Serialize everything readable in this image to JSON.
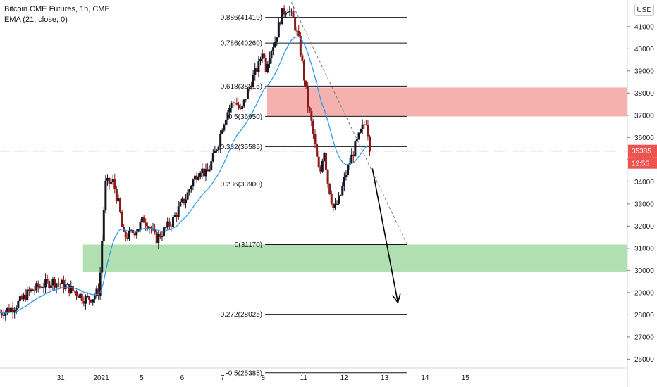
{
  "legend": {
    "line1": "Bitcoin CME Futures, 1h, CME",
    "line2": "EMA (21, close, 0)"
  },
  "currency_button": "USD",
  "current_price_label": "35385",
  "countdown_label": "12:56",
  "colors": {
    "up_candle": "#131722",
    "down_candle": "#8b1a1a",
    "ema": "#2196f3",
    "resistance_zone": "#f4a9a4",
    "support_zone": "#a8dba8",
    "price_tag": "#ef5350"
  },
  "chart_data": {
    "type": "candlestick",
    "title": "Bitcoin CME Futures, 1h, CME",
    "indicator": "EMA (21, close, 0)",
    "y_range": [
      25600,
      42200
    ],
    "y_ticks": [
      26000,
      27000,
      28000,
      29000,
      30000,
      31000,
      32000,
      33000,
      34000,
      35000,
      36000,
      37000,
      38000,
      39000,
      40000,
      41000
    ],
    "x_range": [
      29.5,
      45.0
    ],
    "x_ticks": [
      {
        "x": 31,
        "label": "31"
      },
      {
        "x": 32,
        "label": "2021"
      },
      {
        "x": 33,
        "label": "5"
      },
      {
        "x": 34,
        "label": "6"
      },
      {
        "x": 35,
        "label": "7"
      },
      {
        "x": 36,
        "label": "8"
      },
      {
        "x": 37,
        "label": "11"
      },
      {
        "x": 38,
        "label": "12"
      },
      {
        "x": 39,
        "label": "13"
      },
      {
        "x": 40,
        "label": "14"
      },
      {
        "x": 41,
        "label": "15"
      }
    ],
    "current_price": 35385,
    "fib_levels": [
      {
        "label": "0.886(41419)",
        "value": 41419
      },
      {
        "label": "0.786(40260)",
        "value": 40260
      },
      {
        "label": "0.618(38315)",
        "value": 38315
      },
      {
        "label": "0.5(36950)",
        "value": 36950
      },
      {
        "label": "0.382(35585)",
        "value": 35585
      },
      {
        "label": "0.236(33900)",
        "value": 33900
      },
      {
        "label": "0(31170)",
        "value": 31170
      },
      {
        "label": "-0.272(28025)",
        "value": 28025
      },
      {
        "label": "-0.5(25385)",
        "value": 25385
      }
    ],
    "fib_x_range": [
      36.05,
      39.55
    ],
    "zones": [
      {
        "name": "resistance",
        "x_start": 36.1,
        "x_end": 45.0,
        "low": 36950,
        "high": 38250
      },
      {
        "name": "support",
        "x_start": 31.55,
        "x_end": 45.0,
        "low": 29950,
        "high": 31170
      }
    ],
    "trendline": {
      "from": [
        36.7,
        42100
      ],
      "to": [
        39.55,
        31200
      ]
    },
    "arrow": {
      "from": [
        38.7,
        34600
      ],
      "to": [
        39.33,
        28550
      ]
    },
    "closes_approx": [
      [
        29.5,
        28100
      ],
      [
        29.8,
        28300
      ],
      [
        30.0,
        28600
      ],
      [
        30.2,
        29000
      ],
      [
        30.5,
        29300
      ],
      [
        30.8,
        29500
      ],
      [
        31.0,
        29400
      ],
      [
        31.2,
        29200
      ],
      [
        31.4,
        29000
      ],
      [
        31.6,
        28700
      ],
      [
        31.8,
        28800
      ],
      [
        31.95,
        29100
      ],
      [
        32.1,
        33900
      ],
      [
        32.3,
        34000
      ],
      [
        32.45,
        32800
      ],
      [
        32.55,
        31500
      ],
      [
        32.7,
        31600
      ],
      [
        32.9,
        31900
      ],
      [
        33.05,
        32300
      ],
      [
        33.2,
        32000
      ],
      [
        33.35,
        31400
      ],
      [
        33.55,
        31800
      ],
      [
        33.75,
        32200
      ],
      [
        33.95,
        32900
      ],
      [
        34.1,
        33300
      ],
      [
        34.25,
        34000
      ],
      [
        34.45,
        34600
      ],
      [
        34.6,
        34300
      ],
      [
        34.75,
        35000
      ],
      [
        34.9,
        35800
      ],
      [
        35.0,
        36600
      ],
      [
        35.15,
        37300
      ],
      [
        35.3,
        37700
      ],
      [
        35.45,
        37100
      ],
      [
        35.6,
        38000
      ],
      [
        35.75,
        38700
      ],
      [
        35.9,
        39300
      ],
      [
        36.0,
        40100
      ],
      [
        36.05,
        39000
      ],
      [
        36.15,
        39800
      ],
      [
        36.3,
        40400
      ],
      [
        36.45,
        41500
      ],
      [
        36.6,
        41900
      ],
      [
        36.75,
        41300
      ],
      [
        36.9,
        40200
      ],
      [
        37.0,
        38900
      ],
      [
        37.1,
        37500
      ],
      [
        37.2,
        36600
      ],
      [
        37.3,
        35400
      ],
      [
        37.4,
        34200
      ],
      [
        37.5,
        35600
      ],
      [
        37.6,
        34000
      ],
      [
        37.75,
        32700
      ],
      [
        37.9,
        33300
      ],
      [
        38.05,
        34400
      ],
      [
        38.2,
        35200
      ],
      [
        38.3,
        35700
      ],
      [
        38.45,
        36400
      ],
      [
        38.55,
        36800
      ],
      [
        38.65,
        35400
      ]
    ]
  }
}
